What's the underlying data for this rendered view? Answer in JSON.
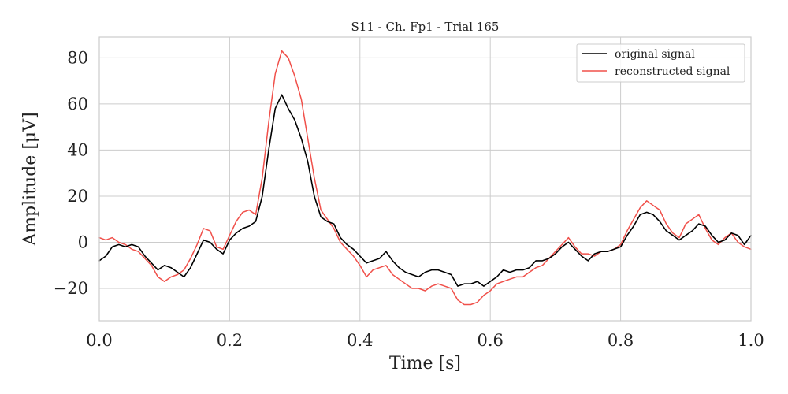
{
  "chart_data": {
    "type": "line",
    "title": "S11 - Ch. Fp1 - Trial 165",
    "xlabel": "Time [s]",
    "ylabel": "Amplitude [μV]",
    "xlim": [
      0.0,
      1.0
    ],
    "ylim": [
      -34,
      89
    ],
    "xticks": [
      0.0,
      0.2,
      0.4,
      0.6,
      0.8,
      1.0
    ],
    "xtick_labels": [
      "0.0",
      "0.2",
      "0.4",
      "0.6",
      "0.8",
      "1.0"
    ],
    "yticks": [
      -20,
      0,
      20,
      40,
      60,
      80
    ],
    "ytick_labels": [
      "−20",
      "0",
      "20",
      "40",
      "60",
      "80"
    ],
    "grid": true,
    "legend_position": "top-right",
    "series": [
      {
        "name": "original signal",
        "color": "#000000",
        "x": [
          0.0,
          0.01,
          0.02,
          0.03,
          0.04,
          0.05,
          0.06,
          0.07,
          0.08,
          0.09,
          0.1,
          0.11,
          0.12,
          0.13,
          0.14,
          0.15,
          0.16,
          0.17,
          0.18,
          0.19,
          0.2,
          0.21,
          0.22,
          0.23,
          0.24,
          0.25,
          0.26,
          0.27,
          0.28,
          0.29,
          0.3,
          0.31,
          0.32,
          0.33,
          0.34,
          0.35,
          0.36,
          0.37,
          0.38,
          0.39,
          0.4,
          0.41,
          0.42,
          0.43,
          0.44,
          0.45,
          0.46,
          0.47,
          0.48,
          0.49,
          0.5,
          0.51,
          0.52,
          0.53,
          0.54,
          0.55,
          0.56,
          0.57,
          0.58,
          0.59,
          0.6,
          0.61,
          0.62,
          0.63,
          0.64,
          0.65,
          0.66,
          0.67,
          0.68,
          0.69,
          0.7,
          0.71,
          0.72,
          0.73,
          0.74,
          0.75,
          0.76,
          0.77,
          0.78,
          0.79,
          0.8,
          0.81,
          0.82,
          0.83,
          0.84,
          0.85,
          0.86,
          0.87,
          0.88,
          0.89,
          0.9,
          0.91,
          0.92,
          0.93,
          0.94,
          0.95,
          0.96,
          0.97,
          0.98,
          0.99,
          1.0
        ],
        "y": [
          -8,
          -6,
          -2,
          -1,
          -2,
          -1,
          -2,
          -6,
          -9,
          -12,
          -10,
          -11,
          -13,
          -15,
          -11,
          -5,
          1,
          0,
          -3,
          -5,
          1,
          4,
          6,
          7,
          9,
          20,
          40,
          58,
          64,
          58,
          53,
          45,
          35,
          20,
          11,
          9,
          8,
          2,
          -1,
          -3,
          -6,
          -9,
          -8,
          -7,
          -4,
          -8,
          -11,
          -13,
          -14,
          -15,
          -13,
          -12,
          -12,
          -13,
          -14,
          -19,
          -18,
          -18,
          -17,
          -19,
          -17,
          -15,
          -12,
          -13,
          -12,
          -12,
          -11,
          -8,
          -8,
          -7,
          -5,
          -2,
          0,
          -3,
          -6,
          -8,
          -5,
          -4,
          -4,
          -3,
          -2,
          3,
          7,
          12,
          13,
          12,
          9,
          5,
          3,
          1,
          3,
          5,
          8,
          7,
          3,
          0,
          1,
          4,
          3,
          -1,
          3
        ]
      },
      {
        "name": "reconstructed signal",
        "color": "#f0504a",
        "x": [
          0.0,
          0.01,
          0.02,
          0.03,
          0.04,
          0.05,
          0.06,
          0.07,
          0.08,
          0.09,
          0.1,
          0.11,
          0.12,
          0.13,
          0.14,
          0.15,
          0.16,
          0.17,
          0.18,
          0.19,
          0.2,
          0.21,
          0.22,
          0.23,
          0.24,
          0.25,
          0.26,
          0.27,
          0.28,
          0.29,
          0.3,
          0.31,
          0.32,
          0.33,
          0.34,
          0.35,
          0.36,
          0.37,
          0.38,
          0.39,
          0.4,
          0.41,
          0.42,
          0.43,
          0.44,
          0.45,
          0.46,
          0.47,
          0.48,
          0.49,
          0.5,
          0.51,
          0.52,
          0.53,
          0.54,
          0.55,
          0.56,
          0.57,
          0.58,
          0.59,
          0.6,
          0.61,
          0.62,
          0.63,
          0.64,
          0.65,
          0.66,
          0.67,
          0.68,
          0.69,
          0.7,
          0.71,
          0.72,
          0.73,
          0.74,
          0.75,
          0.76,
          0.77,
          0.78,
          0.79,
          0.8,
          0.81,
          0.82,
          0.83,
          0.84,
          0.85,
          0.86,
          0.87,
          0.88,
          0.89,
          0.9,
          0.91,
          0.92,
          0.93,
          0.94,
          0.95,
          0.96,
          0.97,
          0.98,
          0.99,
          1.0
        ],
        "y": [
          2,
          1,
          2,
          0,
          -1,
          -3,
          -4,
          -7,
          -10,
          -15,
          -17,
          -15,
          -14,
          -12,
          -7,
          -1,
          6,
          5,
          -2,
          -3,
          3,
          9,
          13,
          14,
          12,
          28,
          52,
          73,
          83,
          80,
          72,
          62,
          45,
          28,
          14,
          10,
          6,
          0,
          -3,
          -6,
          -10,
          -15,
          -12,
          -11,
          -10,
          -14,
          -16,
          -18,
          -20,
          -20,
          -21,
          -19,
          -18,
          -19,
          -20,
          -25,
          -27,
          -27,
          -26,
          -23,
          -21,
          -18,
          -17,
          -16,
          -15,
          -15,
          -13,
          -11,
          -10,
          -7,
          -4,
          -1,
          2,
          -2,
          -5,
          -5,
          -6,
          -4,
          -4,
          -3,
          -1,
          5,
          10,
          15,
          18,
          16,
          14,
          8,
          4,
          2,
          8,
          10,
          12,
          6,
          1,
          -1,
          2,
          4,
          0,
          -2,
          -3
        ]
      }
    ]
  }
}
